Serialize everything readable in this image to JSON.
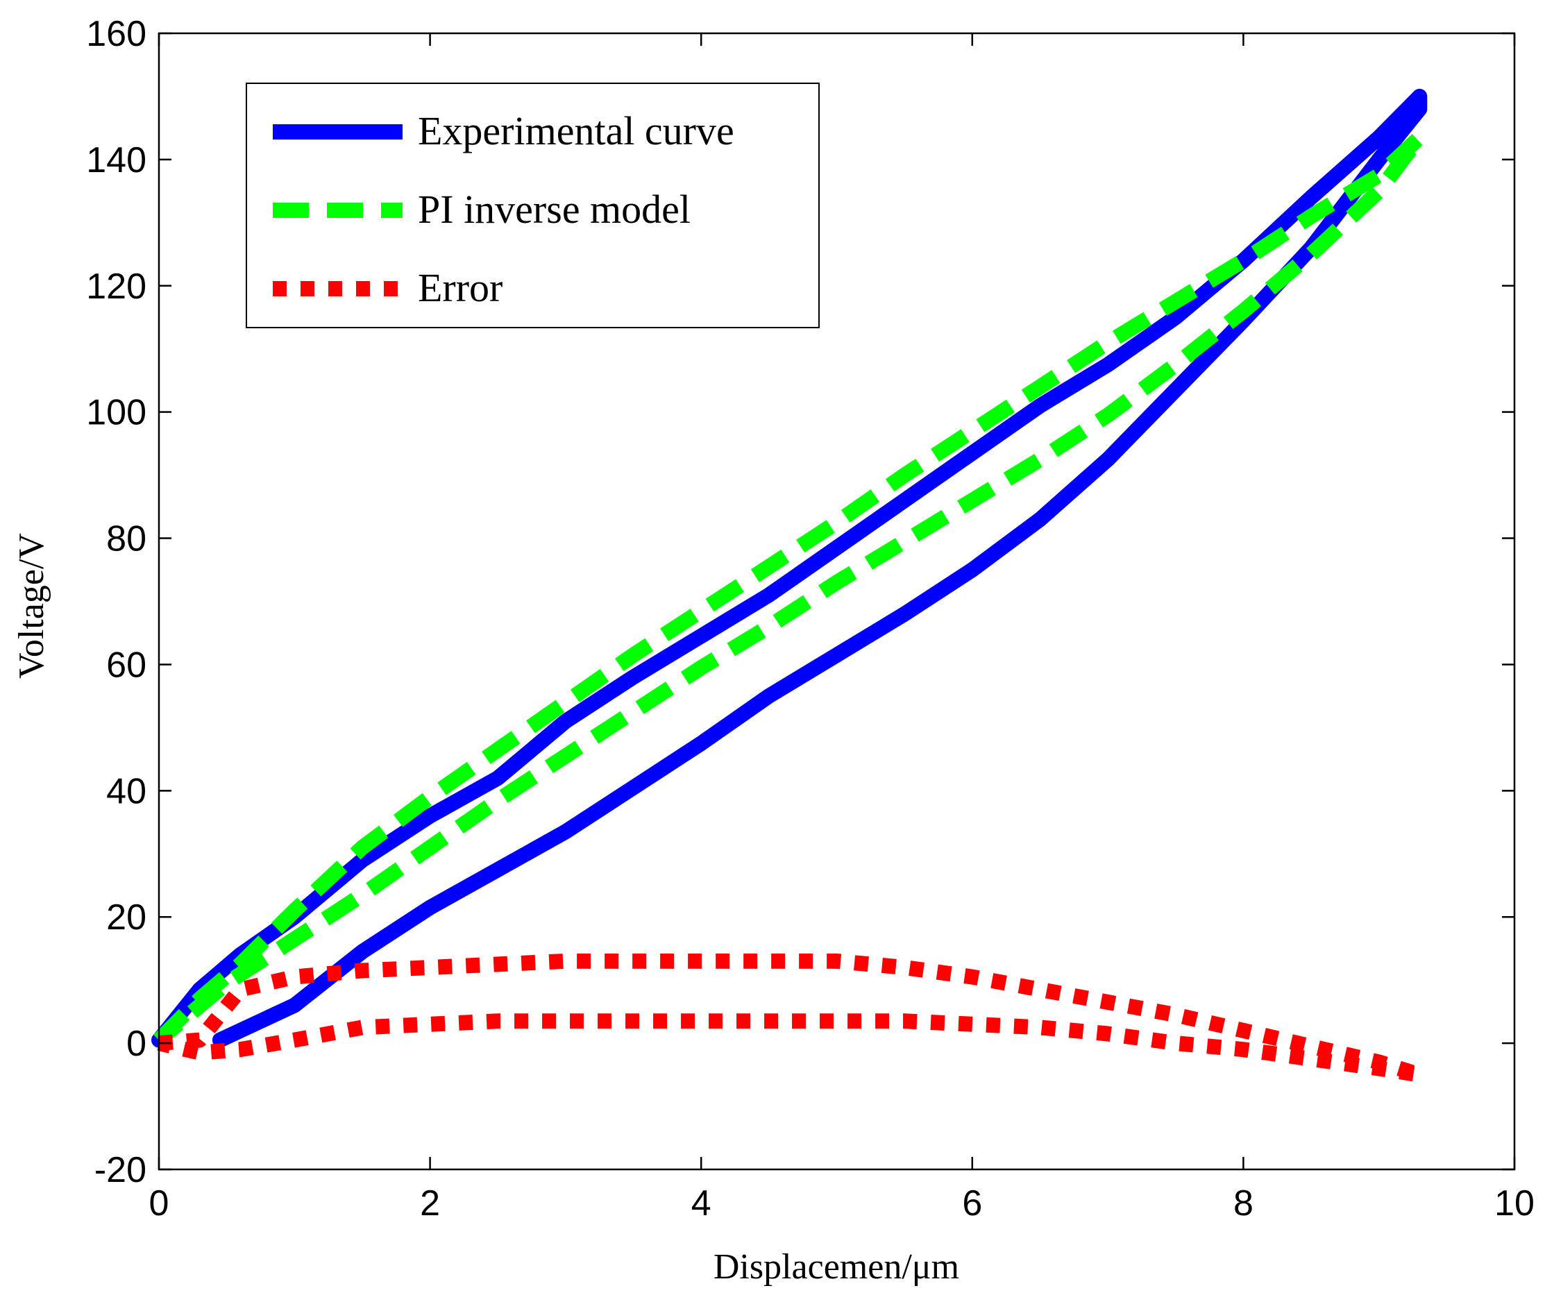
{
  "chart_data": {
    "type": "line",
    "title": "",
    "xlabel": "Displacemen/μm",
    "ylabel": "Voltage/V",
    "xlim": [
      0,
      10
    ],
    "ylim": [
      -20,
      160
    ],
    "xticks": [
      0,
      2,
      4,
      6,
      8,
      10
    ],
    "yticks": [
      -20,
      0,
      20,
      40,
      60,
      80,
      100,
      120,
      140,
      160
    ],
    "grid": false,
    "legend_position": "top-left",
    "series": [
      {
        "name": "Experimental curve",
        "color": "#0000ff",
        "style": "solid",
        "points": [
          [
            0.0,
            0.5
          ],
          [
            0.3,
            8.5
          ],
          [
            0.6,
            14
          ],
          [
            1.0,
            20
          ],
          [
            1.5,
            29
          ],
          [
            2.0,
            36
          ],
          [
            2.5,
            42
          ],
          [
            3.0,
            51
          ],
          [
            3.5,
            58
          ],
          [
            4.0,
            64.5
          ],
          [
            4.5,
            71
          ],
          [
            5.0,
            78.5
          ],
          [
            5.5,
            86
          ],
          [
            6.0,
            93.5
          ],
          [
            6.5,
            101
          ],
          [
            7.0,
            107.5
          ],
          [
            7.5,
            115
          ],
          [
            8.0,
            124
          ],
          [
            8.5,
            134
          ],
          [
            9.0,
            143.5
          ],
          [
            9.3,
            150
          ],
          [
            9.3,
            148
          ],
          [
            9.0,
            140
          ],
          [
            8.5,
            126
          ],
          [
            8.0,
            114.5
          ],
          [
            7.5,
            103.5
          ],
          [
            7.0,
            92.5
          ],
          [
            6.5,
            83
          ],
          [
            6.0,
            75
          ],
          [
            5.5,
            68
          ],
          [
            5.0,
            61.5
          ],
          [
            4.5,
            55
          ],
          [
            4.0,
            47.5
          ],
          [
            3.5,
            40.5
          ],
          [
            3.0,
            33.5
          ],
          [
            2.5,
            27.5
          ],
          [
            2.0,
            21.5
          ],
          [
            1.5,
            14.5
          ],
          [
            1.0,
            6
          ],
          [
            0.45,
            0.5
          ]
        ]
      },
      {
        "name": "PI inverse model",
        "color": "#00ff00",
        "style": "dashed",
        "points": [
          [
            0.0,
            0.5
          ],
          [
            0.3,
            7
          ],
          [
            0.6,
            12.5
          ],
          [
            1.0,
            21
          ],
          [
            1.5,
            31
          ],
          [
            2.0,
            39
          ],
          [
            2.5,
            46.5
          ],
          [
            3.0,
            54
          ],
          [
            3.5,
            61.5
          ],
          [
            4.0,
            68.5
          ],
          [
            4.5,
            75.5
          ],
          [
            5.0,
            82.5
          ],
          [
            5.5,
            90
          ],
          [
            6.0,
            97
          ],
          [
            6.5,
            104
          ],
          [
            7.0,
            111
          ],
          [
            7.5,
            117.5
          ],
          [
            8.0,
            124
          ],
          [
            8.5,
            131
          ],
          [
            9.0,
            137.5
          ],
          [
            9.3,
            143.5
          ],
          [
            9.0,
            135
          ],
          [
            8.5,
            125
          ],
          [
            8.0,
            116
          ],
          [
            7.5,
            107.5
          ],
          [
            7.0,
            99.5
          ],
          [
            6.5,
            92.5
          ],
          [
            6.0,
            86
          ],
          [
            5.5,
            79.5
          ],
          [
            5.0,
            73
          ],
          [
            4.5,
            66
          ],
          [
            4.0,
            59.5
          ],
          [
            3.5,
            52.5
          ],
          [
            3.0,
            45.5
          ],
          [
            2.5,
            38.5
          ],
          [
            2.0,
            31
          ],
          [
            1.5,
            23.5
          ],
          [
            1.0,
            16.5
          ],
          [
            0.5,
            9.5
          ],
          [
            0.0,
            0.5
          ]
        ]
      },
      {
        "name": "Error",
        "color": "#ff0000",
        "style": "dotted",
        "points": [
          [
            0.0,
            0.0
          ],
          [
            0.3,
            0.5
          ],
          [
            0.6,
            8.5
          ],
          [
            1.0,
            10.5
          ],
          [
            1.5,
            11.5
          ],
          [
            2.0,
            12
          ],
          [
            2.5,
            12.5
          ],
          [
            3.0,
            13
          ],
          [
            3.5,
            13
          ],
          [
            4.0,
            13
          ],
          [
            4.5,
            13
          ],
          [
            5.0,
            13
          ],
          [
            5.5,
            12
          ],
          [
            6.0,
            10.5
          ],
          [
            6.5,
            8.5
          ],
          [
            7.0,
            6.5
          ],
          [
            7.5,
            4.5
          ],
          [
            8.0,
            2
          ],
          [
            8.5,
            -0.5
          ],
          [
            9.0,
            -3
          ],
          [
            9.3,
            -5
          ],
          [
            9.0,
            -4
          ],
          [
            8.5,
            -2.5
          ],
          [
            8.0,
            -1
          ],
          [
            7.5,
            0
          ],
          [
            7.0,
            1.5
          ],
          [
            6.5,
            2.5
          ],
          [
            6.0,
            3
          ],
          [
            5.5,
            3.5
          ],
          [
            5.0,
            3.5
          ],
          [
            4.5,
            3.5
          ],
          [
            4.0,
            3.5
          ],
          [
            3.5,
            3.5
          ],
          [
            3.0,
            3.5
          ],
          [
            2.5,
            3.5
          ],
          [
            2.0,
            3
          ],
          [
            1.5,
            2.5
          ],
          [
            1.0,
            0.5
          ],
          [
            0.6,
            -1
          ],
          [
            0.3,
            -1.5
          ],
          [
            0.0,
            0.0
          ]
        ]
      }
    ]
  }
}
